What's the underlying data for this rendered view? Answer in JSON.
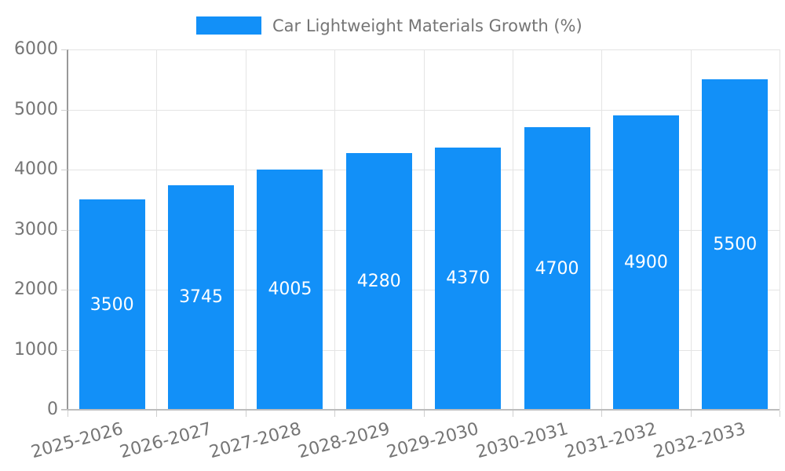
{
  "chart_data": {
    "type": "bar",
    "title": "Car Lightweight Materials Growth (%)",
    "legend_entries": [
      "Car Lightweight Materials Growth (%)"
    ],
    "legend_position": "top-center",
    "categories": [
      "2025-2026",
      "2026-2027",
      "2027-2028",
      "2028-2029",
      "2029-2030",
      "2030-2031",
      "2031-2032",
      "2032-2033"
    ],
    "values": [
      3500,
      3745,
      4005,
      4280,
      4370,
      4700,
      4900,
      5500
    ],
    "value_labels": [
      "3500",
      "3745",
      "4005",
      "4280",
      "4370",
      "4700",
      "4900",
      "5500"
    ],
    "xlabel": "",
    "ylabel": "",
    "ylim": [
      0,
      6000
    ],
    "yticks": [
      0,
      1000,
      2000,
      3000,
      4000,
      5000,
      6000
    ],
    "grid": true,
    "colors": {
      "bar": "#1290F8",
      "value_label": "#ffffff",
      "axis_text": "#757575",
      "gridline": "#e4e4e4",
      "y_spine": "#999999",
      "x_spine": "#bdbdbd",
      "tick": "#cfcfcf",
      "background": "#ffffff"
    }
  }
}
